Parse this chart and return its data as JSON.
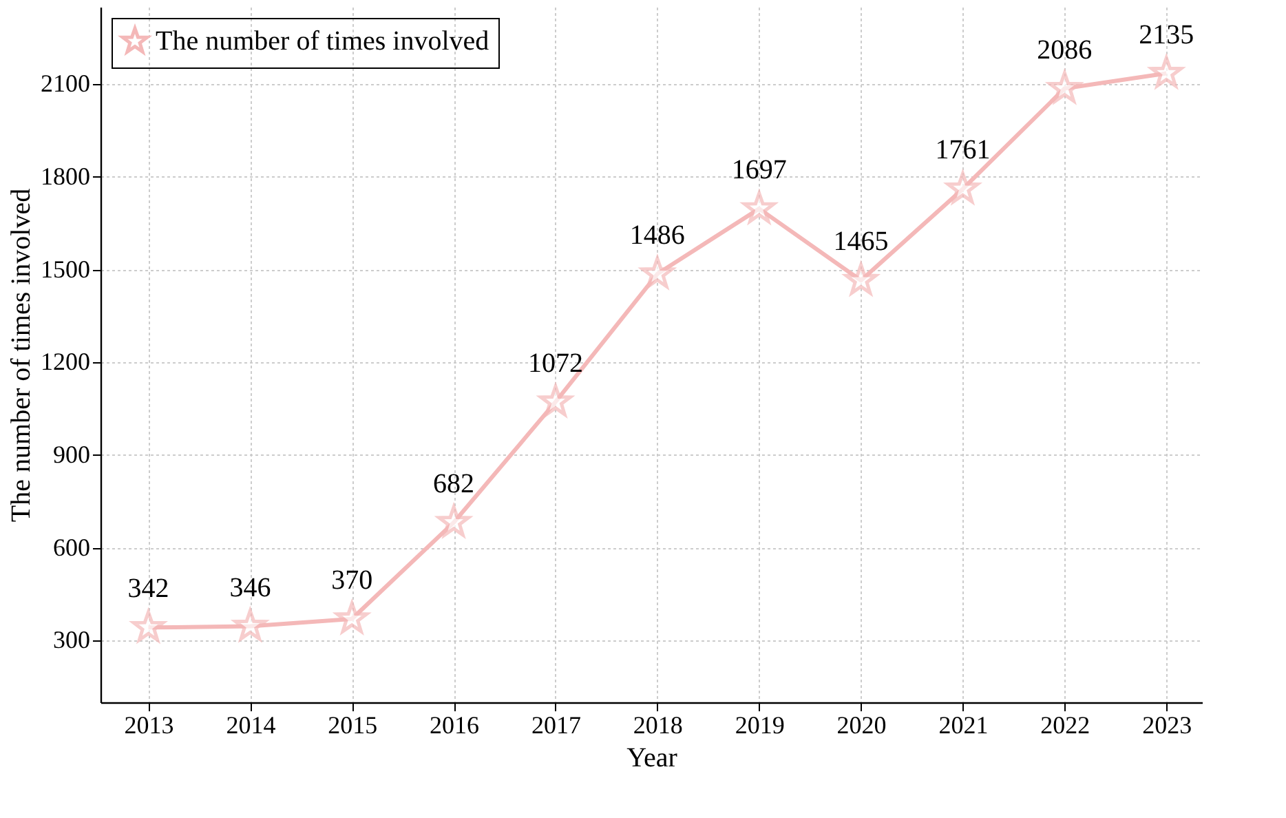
{
  "chart_data": {
    "type": "line",
    "xlabel": "Year",
    "ylabel": "The number of times involved",
    "categories": [
      "2013",
      "2014",
      "2015",
      "2016",
      "2017",
      "2018",
      "2019",
      "2020",
      "2021",
      "2022",
      "2023"
    ],
    "series": [
      {
        "name": "The number of times involved",
        "color": "#f4b8b8",
        "values": [
          342,
          346,
          370,
          682,
          1072,
          1486,
          1697,
          1465,
          1761,
          2086,
          2135
        ]
      }
    ],
    "ylim": [
      100,
      2350
    ],
    "yticks": [
      300,
      600,
      900,
      1200,
      1500,
      1800,
      2100
    ],
    "grid": true,
    "legend": "top left",
    "marker": "star",
    "line_style": "solid",
    "data_labels": true
  }
}
